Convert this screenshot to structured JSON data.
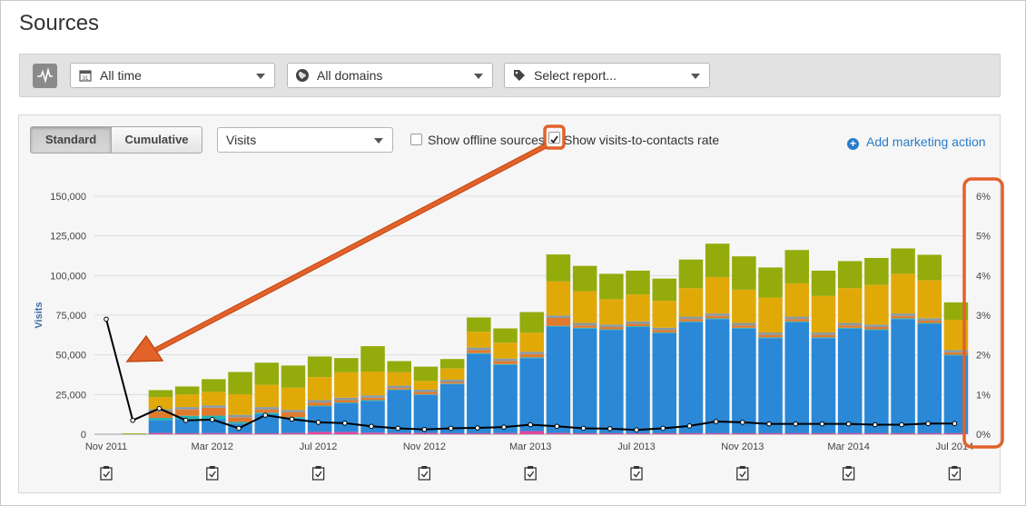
{
  "page": {
    "title": "Sources"
  },
  "filters": {
    "date_range": "All time",
    "domains": "All domains",
    "report": "Select report..."
  },
  "toolbar": {
    "standard_label": "Standard",
    "cumulative_label": "Cumulative",
    "metric": "Visits",
    "offline_label": "Show offline sources",
    "offline_checked": false,
    "rate_label": "Show visits-to-contacts rate",
    "rate_checked": true,
    "add_action_label": "Add marketing action"
  },
  "chart_data": {
    "type": "bar",
    "stacked": true,
    "ylabel": "Visits",
    "ylim": [
      0,
      150000
    ],
    "y_ticks": [
      "150,000",
      "125,000",
      "100,000",
      "75,000",
      "50,000",
      "25,000",
      "0"
    ],
    "y2_ticks": [
      "6%",
      "5%",
      "4%",
      "3%",
      "2%",
      "1%",
      "0%"
    ],
    "y2lim": [
      0,
      6
    ],
    "x_tick_labels": [
      "Nov 2011",
      "Mar 2012",
      "Jul 2012",
      "Nov 2012",
      "Mar 2013",
      "Jul 2013",
      "Nov 2013",
      "Mar 2014",
      "Jul 2014"
    ],
    "categories": [
      "Nov 2011",
      "Dec 2011",
      "Jan 2012",
      "Feb 2012",
      "Mar 2012",
      "Apr 2012",
      "May 2012",
      "Jun 2012",
      "Jul 2012",
      "Aug 2012",
      "Sep 2012",
      "Oct 2012",
      "Nov 2012",
      "Dec 2012",
      "Jan 2013",
      "Feb 2013",
      "Mar 2013",
      "Apr 2013",
      "May 2013",
      "Jun 2013",
      "Jul 2013",
      "Aug 2013",
      "Sep 2013",
      "Oct 2013",
      "Nov 2013",
      "Dec 2013",
      "Jan 2014",
      "Feb 2014",
      "Mar 2014",
      "Apr 2014",
      "May 2014",
      "Jun 2014",
      "Jul 2014"
    ],
    "series": [
      {
        "color": "#e0479e",
        "values": [
          0,
          0,
          800,
          600,
          700,
          700,
          600,
          800,
          1500,
          1500,
          1000,
          800,
          800,
          600,
          600,
          700,
          2000,
          800,
          600,
          600,
          600,
          600,
          600,
          600,
          600,
          600,
          600,
          600,
          600,
          600,
          600,
          600,
          600
        ]
      },
      {
        "color": "#2a88d6",
        "values": [
          0,
          0,
          8000,
          9000,
          9000,
          6000,
          12000,
          9000,
          16000,
          18000,
          20000,
          27000,
          24000,
          31000,
          50000,
          43000,
          46000,
          67000,
          66000,
          65000,
          67000,
          63000,
          70000,
          72000,
          66000,
          60000,
          70000,
          60000,
          66000,
          65000,
          72000,
          69000,
          49000
        ]
      },
      {
        "color": "#f3e21a",
        "values": [
          0,
          0,
          0,
          0,
          0,
          0,
          0,
          0,
          0,
          0,
          0,
          0,
          0,
          0,
          0,
          0,
          0,
          0,
          0,
          0,
          0,
          0,
          0,
          0,
          0,
          0,
          0,
          0,
          0,
          0,
          0,
          0,
          0
        ]
      },
      {
        "color": "#27b3b8",
        "values": [
          0,
          0,
          1500,
          2000,
          2000,
          1000,
          1000,
          1000,
          500,
          500,
          500,
          300,
          300,
          300,
          500,
          500,
          500,
          500,
          500,
          500,
          500,
          500,
          500,
          500,
          500,
          500,
          500,
          500,
          500,
          500,
          500,
          500,
          500
        ]
      },
      {
        "color": "#e07b2e",
        "values": [
          0,
          0,
          4000,
          4000,
          5000,
          3000,
          2000,
          3000,
          2000,
          1500,
          1500,
          1000,
          1500,
          1000,
          2000,
          2000,
          2000,
          5000,
          1500,
          1500,
          1500,
          1500,
          1500,
          1500,
          1500,
          1500,
          1500,
          1500,
          1500,
          1500,
          1500,
          1500,
          1500
        ]
      },
      {
        "color": "#889aa3",
        "values": [
          0,
          0,
          1500,
          1500,
          1500,
          1500,
          1500,
          1500,
          1500,
          1500,
          1500,
          1500,
          1500,
          1500,
          1500,
          1500,
          1500,
          1500,
          1500,
          1500,
          1500,
          1500,
          1500,
          1500,
          1500,
          1500,
          1500,
          1500,
          1500,
          1500,
          1500,
          1500,
          1500
        ]
      },
      {
        "color": "#e1a908",
        "values": [
          0,
          0,
          7500,
          8000,
          8500,
          13000,
          14000,
          14000,
          14500,
          16000,
          15000,
          8500,
          5500,
          7000,
          10000,
          10000,
          12000,
          21500,
          20000,
          16000,
          17000,
          17000,
          18000,
          23000,
          21000,
          22000,
          21000,
          23000,
          22000,
          25000,
          25000,
          24000,
          19000
        ]
      },
      {
        "color": "#94ab0c",
        "values": [
          0,
          500,
          4500,
          5000,
          8000,
          14000,
          14000,
          14000,
          13000,
          9000,
          16000,
          7000,
          9000,
          6000,
          9000,
          9000,
          13000,
          17000,
          16000,
          16000,
          15000,
          14000,
          18000,
          21000,
          21000,
          19000,
          21000,
          16000,
          17000,
          17000,
          16000,
          16000,
          11000
        ]
      }
    ],
    "rate_line": {
      "values": [
        2.9,
        0.35,
        0.65,
        0.35,
        0.37,
        0.15,
        0.48,
        0.38,
        0.3,
        0.28,
        0.2,
        0.15,
        0.12,
        0.15,
        0.16,
        0.18,
        0.24,
        0.2,
        0.15,
        0.14,
        0.11,
        0.15,
        0.21,
        0.32,
        0.3,
        0.26,
        0.26,
        0.26,
        0.26,
        0.24,
        0.24,
        0.27,
        0.27
      ]
    }
  },
  "icons": {
    "pulse": "pulse-icon",
    "calendar": "calendar-icon",
    "globe": "globe-icon",
    "tag": "tag-icon",
    "plus": "plus-circle-icon",
    "marker": "clipboard-check-icon"
  },
  "colors": {
    "accent": "#2a7bc9",
    "highlight": "#e2622a"
  }
}
